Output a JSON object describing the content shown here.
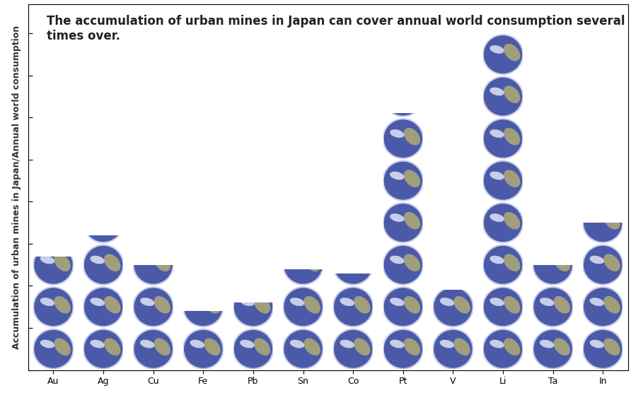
{
  "chart_data": {
    "type": "bar",
    "title": "The accumulation of urban mines in Japan can cover annual world consumption several times over.",
    "y_label": "Accumulation of urban mines in Japan/Annual world consumption",
    "categories": [
      "Au",
      "Ag",
      "Cu",
      "Fe",
      "Pb",
      "Sn",
      "Co",
      "Pt",
      "V",
      "Li",
      "Ta",
      "In"
    ],
    "values": [
      2.7,
      3.2,
      2.5,
      1.4,
      1.6,
      2.4,
      2.3,
      6.1,
      1.9,
      8.0,
      2.5,
      3.5
    ],
    "color": "#4a5aa8",
    "ylim": [
      0,
      8.7
    ],
    "yticks": [
      0,
      1,
      2,
      3,
      4,
      5,
      6,
      7,
      8
    ],
    "tick_labels": "x",
    "grid": false
  }
}
